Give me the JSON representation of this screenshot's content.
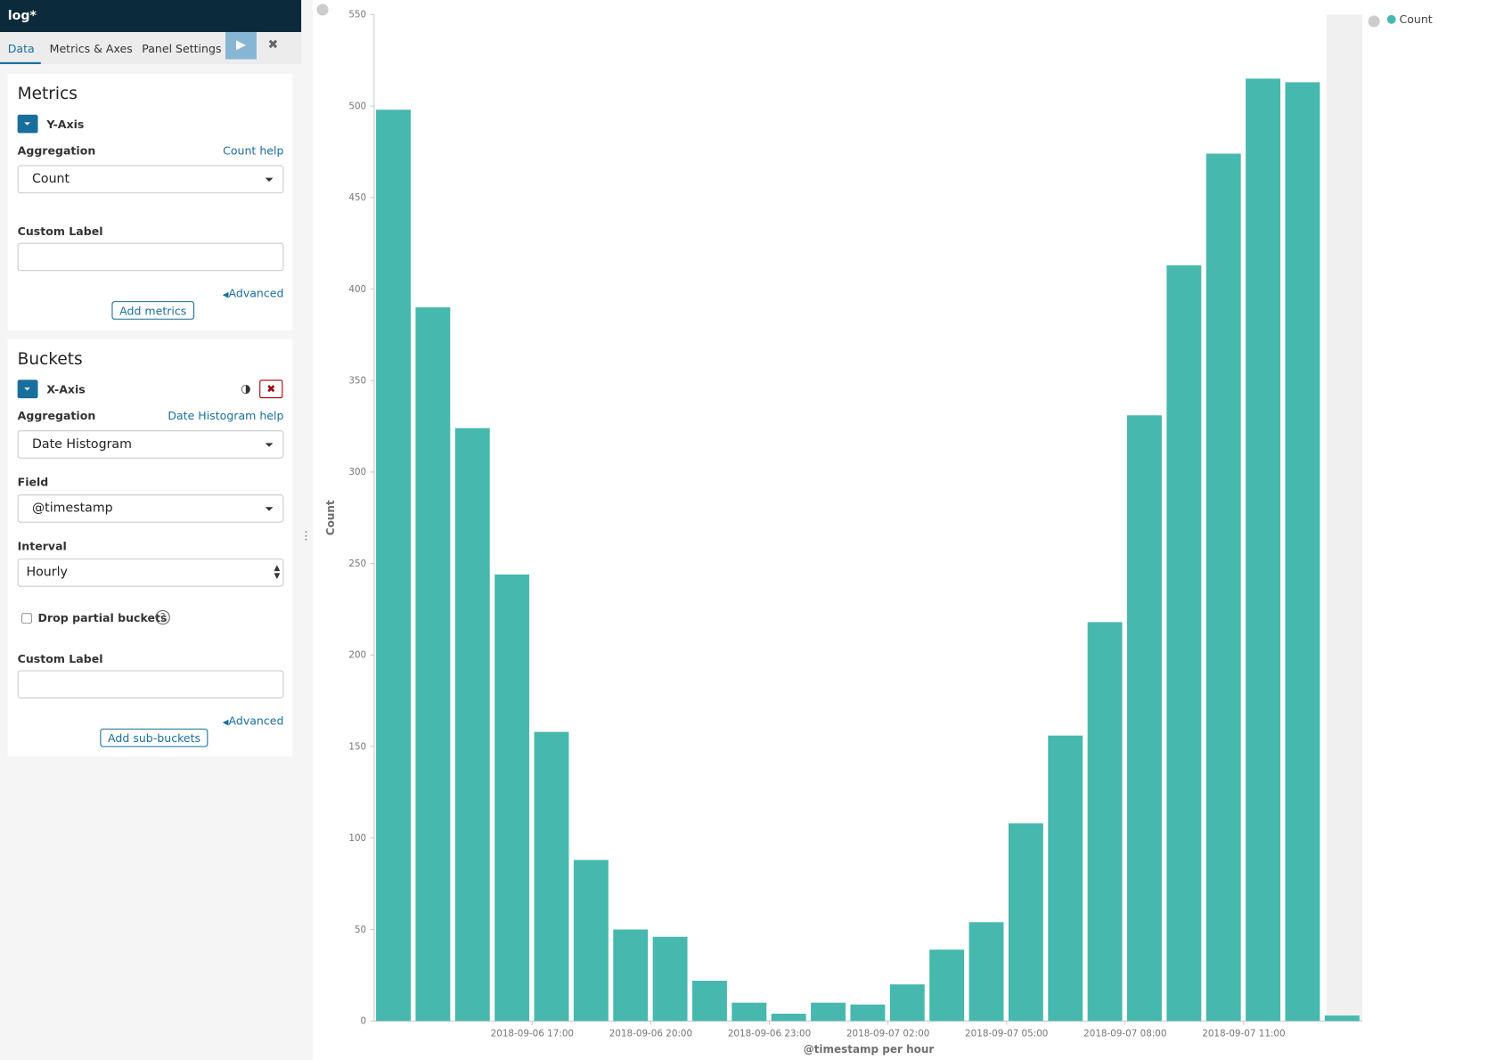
{
  "header": {
    "title": "log*"
  },
  "tabs": [
    "Data",
    "Metrics & Axes",
    "Panel Settings"
  ],
  "metrics": {
    "title": "Metrics",
    "agg_title": "Y-Axis",
    "aggregation_label": "Aggregation",
    "help": "Count help",
    "aggregation": "Count",
    "custom_label": "Custom Label",
    "advanced": "Advanced",
    "add_button": "Add metrics"
  },
  "buckets": {
    "title": "Buckets",
    "agg_title": "X-Axis",
    "aggregation_label": "Aggregation",
    "help": "Date Histogram help",
    "aggregation": "Date Histogram",
    "field_label": "Field",
    "field": "@timestamp",
    "interval_label": "Interval",
    "interval": "Hourly",
    "drop_partial": "Drop partial buckets",
    "custom_label": "Custom Label",
    "advanced": "Advanced",
    "add_button": "Add sub-buckets"
  },
  "chart_data": {
    "type": "bar",
    "xlabel": "@timestamp per hour",
    "ylabel": "Count",
    "categories": [
      null,
      null,
      null,
      null,
      "2018-09-06 17:00",
      null,
      null,
      "2018-09-06 20:00",
      null,
      null,
      "2018-09-06 23:00",
      null,
      null,
      "2018-09-07 02:00",
      null,
      null,
      "2018-09-07 05:00",
      null,
      null,
      "2018-09-07 08:00",
      null,
      null,
      "2018-09-07 11:00",
      null,
      null
    ],
    "series": [
      {
        "name": "Count",
        "color": "#47b8ae",
        "values": [
          498,
          390,
          324,
          244,
          158,
          88,
          50,
          46,
          22,
          10,
          4,
          10,
          9,
          20,
          39,
          54,
          108,
          156,
          218,
          331,
          413,
          474,
          515,
          513,
          3
        ]
      }
    ],
    "ylim": [
      0,
      550
    ],
    "yticks": [
      0,
      50,
      100,
      150,
      200,
      250,
      300,
      350,
      400,
      450,
      500,
      550
    ],
    "legend": "top-right"
  }
}
